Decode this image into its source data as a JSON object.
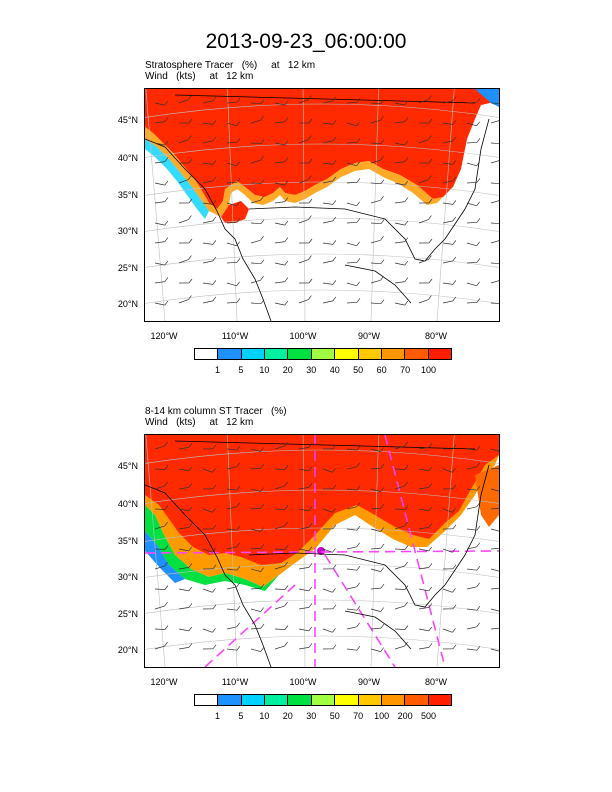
{
  "title": "2013-09-23_06:00:00",
  "panels": [
    {
      "field_line": "Stratosphere Tracer   (%)     at   12 km",
      "wind_line": "Wind   (kts)     at   12 km",
      "lat_labels": [
        "45°N",
        "40°N",
        "35°N",
        "30°N",
        "25°N",
        "20°N"
      ],
      "lon_labels": [
        "120°W",
        "110°W",
        "100°W",
        "90°W",
        "80°W"
      ],
      "colorbar_labels": [
        "1",
        "5",
        "10",
        "20",
        "30",
        "40",
        "50",
        "60",
        "70",
        "100"
      ],
      "colorbar_colors": [
        "#ffffff",
        "#1e90ff",
        "#00d2ff",
        "#00f0a0",
        "#00e040",
        "#a0ff40",
        "#ffff00",
        "#ffc800",
        "#ff9600",
        "#ff5a00",
        "#ff1e00"
      ]
    },
    {
      "field_line": "8-14 km column ST Tracer   (%)",
      "wind_line": "Wind   (kts)     at   12 km",
      "lat_labels": [
        "45°N",
        "40°N",
        "35°N",
        "30°N",
        "25°N",
        "20°N"
      ],
      "lon_labels": [
        "120°W",
        "110°W",
        "100°W",
        "90°W",
        "80°W"
      ],
      "colorbar_labels": [
        "1",
        "5",
        "10",
        "20",
        "30",
        "50",
        "70",
        "100",
        "200",
        "500"
      ],
      "colorbar_colors": [
        "#ffffff",
        "#1e90ff",
        "#00d2ff",
        "#00f0a0",
        "#00e040",
        "#a0ff40",
        "#ffff00",
        "#ffc800",
        "#ff9600",
        "#ff5a00",
        "#ff1e00"
      ]
    }
  ]
}
